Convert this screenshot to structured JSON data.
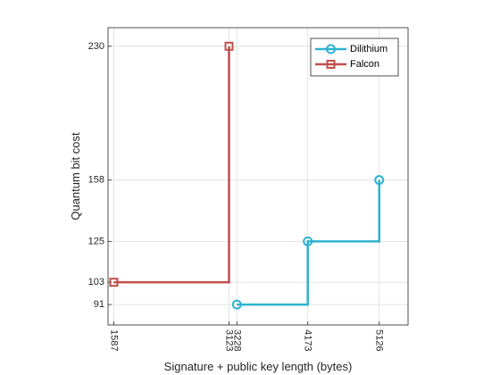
{
  "chart_data": {
    "type": "line",
    "step": "post",
    "xlabel": "Signature + public key length (bytes)",
    "ylabel": "Quantum bit cost",
    "xlim": [
      1510,
      5510
    ],
    "ylim": [
      80,
      240
    ],
    "xticks": [
      1587,
      3123,
      3228,
      4173,
      5126
    ],
    "yticks": [
      91,
      103,
      125,
      158,
      230
    ],
    "grid": true,
    "legend": "top-right",
    "series": [
      {
        "name": "Dilithium",
        "color": "#2db3d0",
        "marker": "circle",
        "x": [
          3228,
          4173,
          5126
        ],
        "y": [
          91,
          125,
          158
        ]
      },
      {
        "name": "Falcon",
        "color": "#c0504d",
        "marker": "square",
        "x": [
          1587,
          3123
        ],
        "y": [
          103,
          230
        ]
      }
    ]
  }
}
